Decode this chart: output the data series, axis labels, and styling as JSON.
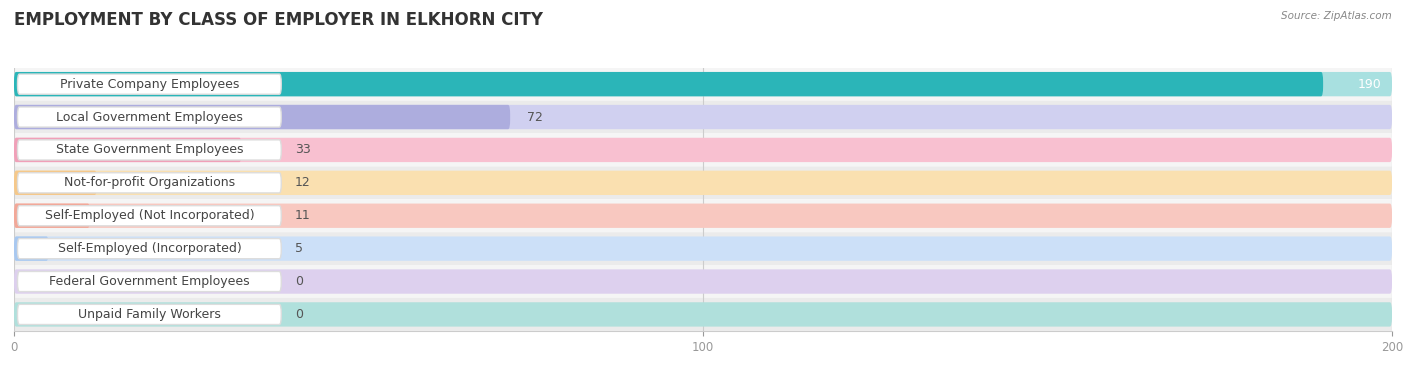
{
  "title": "EMPLOYMENT BY CLASS OF EMPLOYER IN ELKHORN CITY",
  "source": "Source: ZipAtlas.com",
  "categories": [
    "Private Company Employees",
    "Local Government Employees",
    "State Government Employees",
    "Not-for-profit Organizations",
    "Self-Employed (Not Incorporated)",
    "Self-Employed (Incorporated)",
    "Federal Government Employees",
    "Unpaid Family Workers"
  ],
  "values": [
    190,
    72,
    33,
    12,
    11,
    5,
    0,
    0
  ],
  "bar_colors": [
    "#2bb5b8",
    "#adadde",
    "#f0a0b8",
    "#f5c88a",
    "#f2a898",
    "#a8c8f0",
    "#c4aad8",
    "#70c8c0"
  ],
  "bar_colors_light": [
    "#a8e0e0",
    "#d0d0f0",
    "#f8c0d0",
    "#fae0b0",
    "#f8c8c0",
    "#cce0f8",
    "#ddd0ee",
    "#b0e0dc"
  ],
  "xlim": [
    0,
    200
  ],
  "xticks": [
    0,
    100,
    200
  ],
  "title_fontsize": 12,
  "label_fontsize": 9,
  "value_fontsize": 9,
  "background_color": "#ffffff",
  "row_bg_even": "#f5f5f5",
  "row_bg_odd": "#ebebeb"
}
